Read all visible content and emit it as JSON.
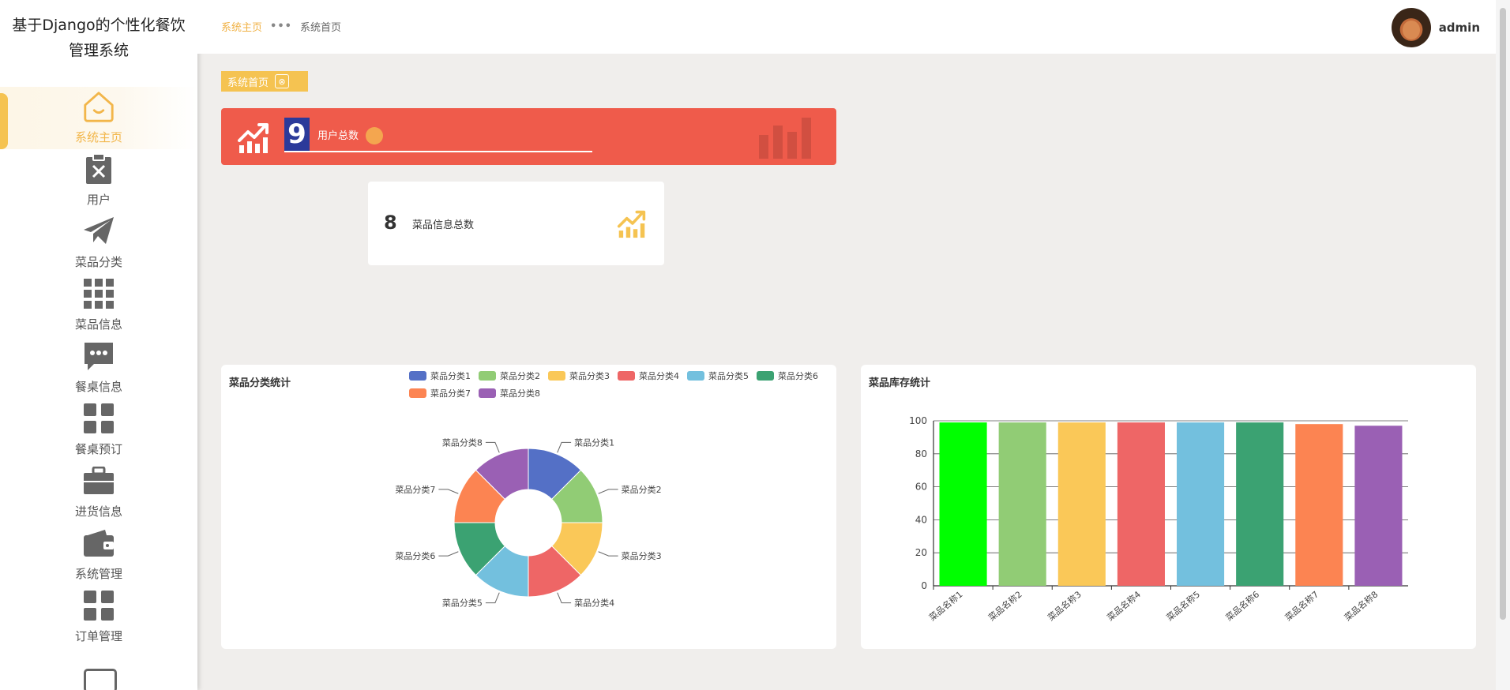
{
  "sidebar": {
    "title_line1": "基于Django的个性化餐饮",
    "title_line2": "管理系统",
    "items": [
      {
        "label": "系统主页",
        "icon": "home-icon"
      },
      {
        "label": "用户",
        "icon": "clipboard-x-icon"
      },
      {
        "label": "菜品分类",
        "icon": "paper-plane-icon"
      },
      {
        "label": "菜品信息",
        "icon": "grid-icon"
      },
      {
        "label": "餐桌信息",
        "icon": "chat-bubble-icon"
      },
      {
        "label": "餐桌预订",
        "icon": "four-squares-icon"
      },
      {
        "label": "进货信息",
        "icon": "briefcase-icon"
      },
      {
        "label": "系统管理",
        "icon": "wallet-icon"
      },
      {
        "label": "订单管理",
        "icon": "four-squares-icon"
      }
    ]
  },
  "header": {
    "breadcrumb_home": "系统主页",
    "breadcrumb_current": "系统首页",
    "username": "admin"
  },
  "tag": {
    "label": "系统首页"
  },
  "stats": {
    "users": {
      "value": "9",
      "label": "用户总数"
    },
    "dishes": {
      "value": "8",
      "label": "菜品信息总数"
    }
  },
  "colors": {
    "accent": "#f5c351",
    "red_card": "#ef5b4b"
  },
  "chart_data": [
    {
      "type": "pie",
      "title": "菜品分类统计",
      "categories": [
        "菜品分类1",
        "菜品分类2",
        "菜品分类3",
        "菜品分类4",
        "菜品分类5",
        "菜品分类6",
        "菜品分类7",
        "菜品分类8"
      ],
      "values": [
        1,
        1,
        1,
        1,
        1,
        1,
        1,
        1
      ],
      "colors": [
        "#5470c6",
        "#91cc75",
        "#fac858",
        "#ee6666",
        "#73c0de",
        "#3ba272",
        "#fc8452",
        "#9a60b4"
      ],
      "legend": "top"
    },
    {
      "type": "bar",
      "title": "菜品库存统计",
      "categories": [
        "菜品名称1",
        "菜品名称2",
        "菜品名称3",
        "菜品名称4",
        "菜品名称5",
        "菜品名称6",
        "菜品名称7",
        "菜品名称8"
      ],
      "values": [
        99,
        99,
        99,
        99,
        99,
        99,
        98,
        97
      ],
      "colors": [
        "#00ff00",
        "#91cc75",
        "#fac858",
        "#ee6666",
        "#73c0de",
        "#3ba272",
        "#fc8452",
        "#9a60b4"
      ],
      "ylim": [
        0,
        100
      ],
      "yticks": [
        0,
        20,
        40,
        60,
        80,
        100
      ],
      "grid": true
    }
  ]
}
